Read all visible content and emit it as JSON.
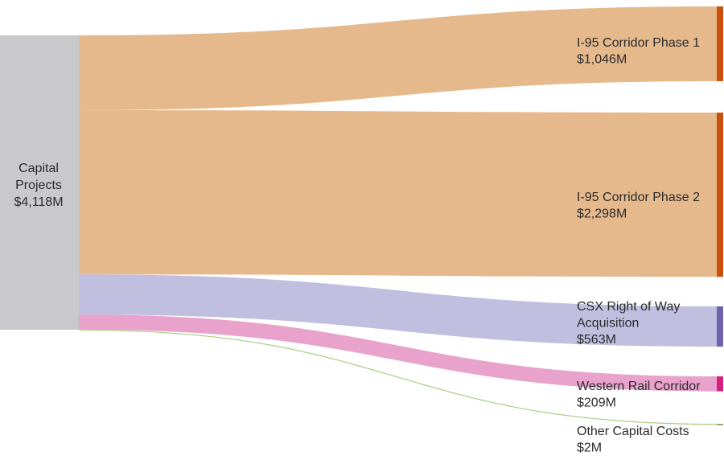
{
  "chart_data": {
    "type": "sankey",
    "source": {
      "name_lines": [
        "Capital",
        "Projects"
      ],
      "value_label": "$4,118M",
      "value": 4118,
      "color": "#c9c9cb"
    },
    "targets": [
      {
        "name_lines": [
          "I-95 Corridor Phase 1"
        ],
        "value_label": "$1,046M",
        "value": 1046,
        "flow_color": "#e5b98c",
        "bar_color": "#c9510c"
      },
      {
        "name_lines": [
          "I-95 Corridor Phase 2"
        ],
        "value_label": "$2,298M",
        "value": 2298,
        "flow_color": "#e5b98c",
        "bar_color": "#c9510c"
      },
      {
        "name_lines": [
          "CSX Right of Way",
          "Acquisition"
        ],
        "value_label": "$563M",
        "value": 563,
        "flow_color": "#c0bfe0",
        "bar_color": "#6c63aa"
      },
      {
        "name_lines": [
          "Western Rail Corridor"
        ],
        "value_label": "$209M",
        "value": 209,
        "flow_color": "#e9a2cc",
        "bar_color": "#d6207e"
      },
      {
        "name_lines": [
          "Other Capital Costs"
        ],
        "value_label": "$2M",
        "value": 2,
        "flow_color": "#a9cd7c",
        "bar_color": "#6f9e34"
      }
    ]
  }
}
